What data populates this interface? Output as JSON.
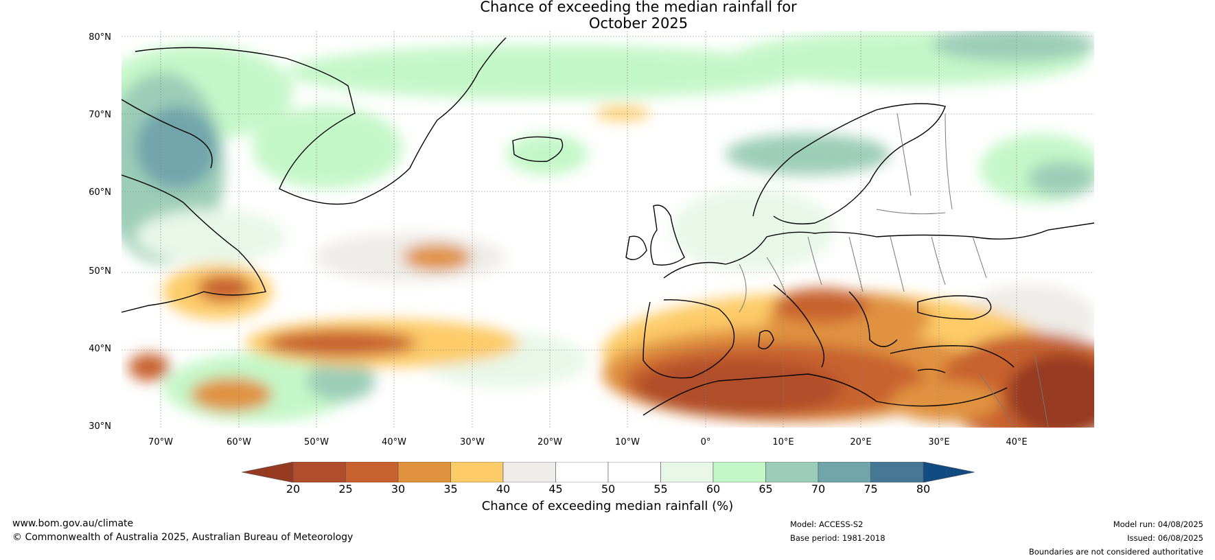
{
  "title": {
    "line1": "Chance of exceeding the median rainfall for",
    "line2": "October 2025"
  },
  "lat_labels": [
    "80°N",
    "70°N",
    "60°N",
    "50°N",
    "40°N",
    "30°N"
  ],
  "lon_labels": [
    "70°W",
    "60°W",
    "50°W",
    "40°W",
    "30°W",
    "20°W",
    "10°W",
    "0°",
    "10°E",
    "20°E",
    "30°E",
    "40°E"
  ],
  "colorbar": {
    "ticks": [
      "20",
      "25",
      "30",
      "35",
      "40",
      "45",
      "50",
      "55",
      "60",
      "65",
      "70",
      "75",
      "80"
    ],
    "colors": [
      "#973a22",
      "#b04d2a",
      "#c8622f",
      "#e0923f",
      "#fdcb68",
      "#eeece8",
      "#ffffff",
      "#ffffff",
      "#e8f7e8",
      "#c4f7c8",
      "#9ccdb8",
      "#71a5ab",
      "#467896",
      "#124b82"
    ],
    "label": "Chance of exceeding median rainfall (%)"
  },
  "footer": {
    "website": "www.bom.gov.au/climate",
    "copyright": "© Commonwealth of Australia 2025, Australian Bureau of Meteorology",
    "model": "Model: ACCESS-S2",
    "base_period": "Base period: 1981-2018",
    "model_run": "Model run: 04/08/2025",
    "issued": "Issued: 06/08/2025",
    "disclaimer": "Boundaries are not considered authoritative"
  }
}
